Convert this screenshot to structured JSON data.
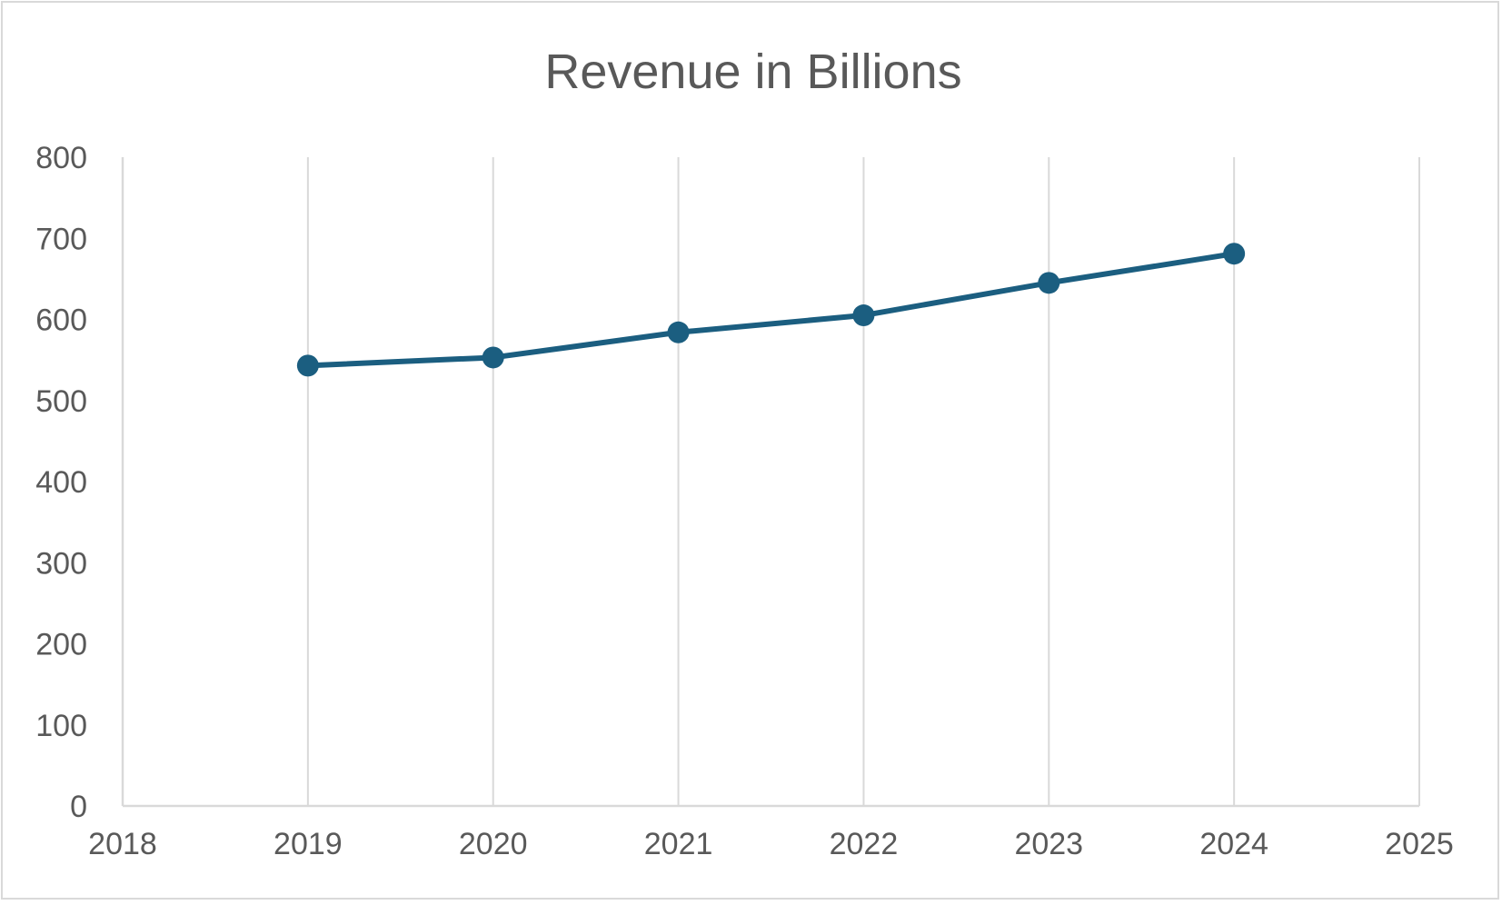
{
  "chart_data": {
    "type": "scatter",
    "title": "Revenue in Billions",
    "xlabel": "",
    "ylabel": "",
    "xlim": [
      2018,
      2025
    ],
    "ylim": [
      0,
      800
    ],
    "x_ticks": [
      2018,
      2019,
      2020,
      2021,
      2022,
      2023,
      2024,
      2025
    ],
    "y_ticks": [
      0,
      100,
      200,
      300,
      400,
      500,
      600,
      700,
      800
    ],
    "grid": "vertical",
    "legend": "none",
    "mode": "lines+markers",
    "series": [
      {
        "x": [
          2019,
          2020,
          2021,
          2022,
          2023,
          2024
        ],
        "y": [
          543,
          553,
          584,
          605,
          645,
          681
        ],
        "color": "#1b5e80"
      }
    ]
  }
}
